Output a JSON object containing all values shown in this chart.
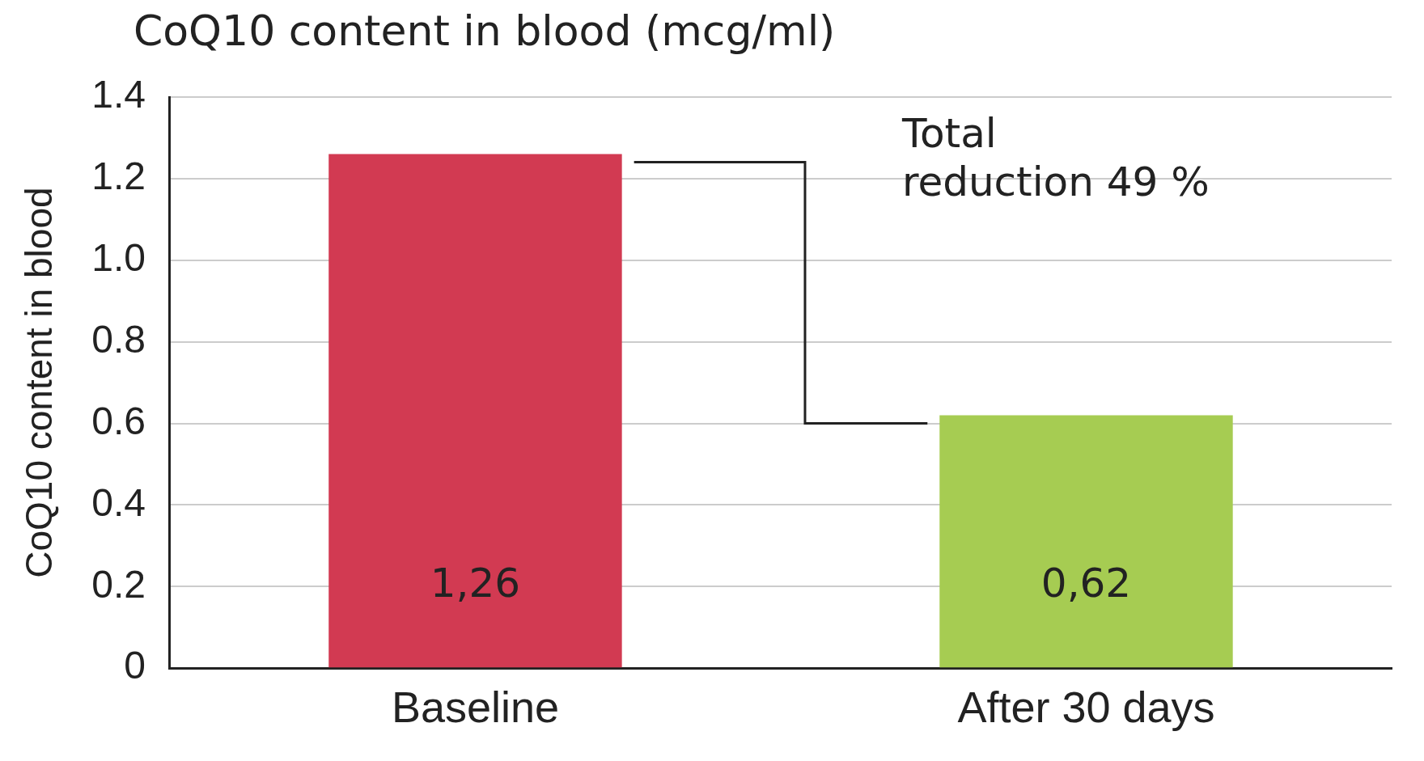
{
  "chart_data": {
    "type": "bar",
    "title": "CoQ10 content in blood (mcg/ml)",
    "ylabel": "CoQ10 content in blood",
    "categories": [
      "Baseline",
      "After 30 days"
    ],
    "values": [
      1.26,
      0.62
    ],
    "colors": [
      "#d23a52",
      "#a6cc52"
    ],
    "value_labels": [
      "1,26",
      "0,62"
    ],
    "ylim": [
      0,
      1.4
    ],
    "yticks": [
      0,
      0.2,
      0.4,
      0.6,
      0.8,
      {
        "value": 1,
        "label": "1.0"
      },
      1.2,
      1.4
    ],
    "grid": "y",
    "legend": false,
    "annotations": [
      "Total\nreduction 49 %"
    ]
  }
}
